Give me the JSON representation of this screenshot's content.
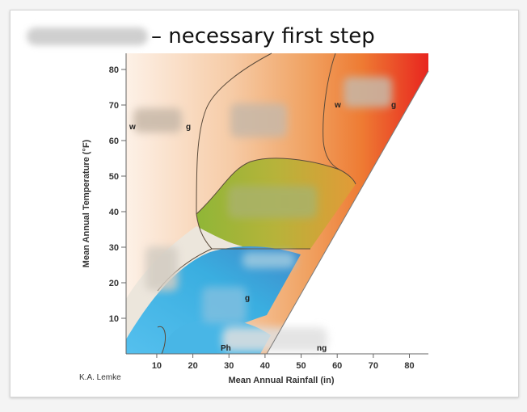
{
  "slide": {
    "title": "– necessary first step"
  },
  "diagram": {
    "y_axis_title": "Mean Annual Temperature (°F)",
    "x_axis_title": "Mean Annual Rainfall (in)",
    "credit": "K.A. Lemke",
    "y_ticks": [
      "10",
      "20",
      "30",
      "40",
      "50",
      "60",
      "70",
      "80"
    ],
    "x_ticks": [
      "10",
      "20",
      "30",
      "40",
      "50",
      "60",
      "70",
      "80"
    ],
    "region_fragments": {
      "upper_left": "w",
      "upper_left_end": "g",
      "upper_right": "w",
      "upper_right_end": "g",
      "lower_center": "g",
      "bottom": "Ph",
      "bottom_end": "ng"
    },
    "colors": {
      "hot_dry": "#f7d9c0",
      "hot_wet": "#e8251f",
      "temperate_mid": "#9bbf3a",
      "cold_wet": "#39b3e6",
      "line": "#5a4a3a",
      "axis": "#666666"
    }
  }
}
